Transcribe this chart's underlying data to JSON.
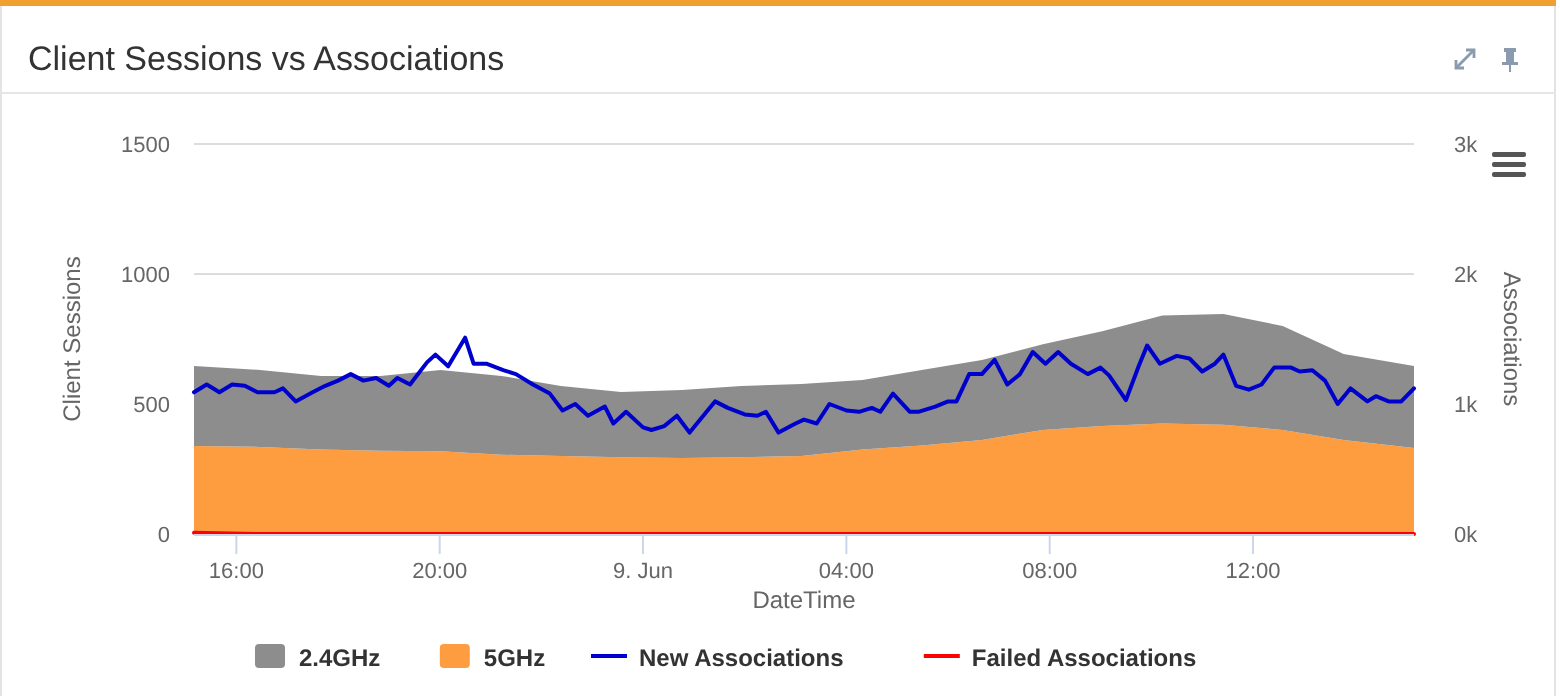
{
  "chart_data": {
    "type": "area",
    "title": "Client Sessions vs Associations",
    "xlabel": "DateTime",
    "ylabel": "Client Sessions",
    "y2label": "Associations",
    "stacked": true,
    "grid": "y",
    "legend": "bottom",
    "marker": "none",
    "x": [
      "--06-08T15:10",
      "--06-08T16:28",
      "--06-08T17:40",
      "--06-08T18:50",
      "--06-08T20:01",
      "--06-08T21:13",
      "--06-08T22:23",
      "--06-08T23:34",
      "--06-09T00:46",
      "--06-09T01:56",
      "--06-09T03:07",
      "--06-09T04:19",
      "--06-09T05:29",
      "--06-09T06:40",
      "--06-09T07:52",
      "--06-09T09:02",
      "--06-09T10:13",
      "--06-09T11:25",
      "--06-09T12:35",
      "--06-09T13:47",
      "--06-09T15:10"
    ],
    "xlim": [
      "--06-08T15:10",
      "--06-09T15:10"
    ],
    "xticks": [
      {
        "value": "--06-08T16:00",
        "label": "16:00"
      },
      {
        "value": "--06-08T20:00",
        "label": "20:00"
      },
      {
        "value": "--06-09T00:00",
        "label": "9. Jun"
      },
      {
        "value": "--06-09T04:00",
        "label": "04:00"
      },
      {
        "value": "--06-09T08:00",
        "label": "08:00"
      },
      {
        "value": "--06-09T12:00",
        "label": "12:00"
      }
    ],
    "ylim": [
      0,
      1500
    ],
    "yticks": [
      0,
      500,
      1000,
      1500
    ],
    "y2lim": [
      0,
      3000
    ],
    "y2ticks": [
      {
        "value": 0,
        "label": "0k"
      },
      {
        "value": 1000,
        "label": "1k"
      },
      {
        "value": 2000,
        "label": "2k"
      },
      {
        "value": 3000,
        "label": "3k"
      }
    ],
    "series": [
      {
        "name": "5GHz",
        "color": "#fd9d40",
        "values": [
          338,
          335,
          325,
          320,
          318,
          305,
          300,
          295,
          292,
          295,
          300,
          325,
          340,
          362,
          400,
          415,
          425,
          420,
          400,
          362,
          331
        ]
      },
      {
        "name": "2.4GHz",
        "color": "#8d8d8d",
        "values": [
          308,
          296,
          283,
          288,
          313,
          303,
          269,
          251,
          262,
          274,
          277,
          267,
          291,
          307,
          330,
          365,
          415,
          426,
          400,
          330,
          315
        ]
      },
      {
        "name": "New Associations",
        "type": "line",
        "axis": "y2",
        "color": "#0000cc",
        "line_style": "solid",
        "x": [
          "--06-08T15:10",
          "--06-08T15:25",
          "--06-08T15:40",
          "--06-08T15:55",
          "--06-08T16:10",
          "--06-08T16:25",
          "--06-08T16:45",
          "--06-08T16:55",
          "--06-08T17:10",
          "--06-08T17:30",
          "--06-08T17:45",
          "--06-08T18:00",
          "--06-08T18:15",
          "--06-08T18:30",
          "--06-08T18:45",
          "--06-08T19:00",
          "--06-08T19:10",
          "--06-08T19:25",
          "--06-08T19:45",
          "--06-08T19:55",
          "--06-08T20:10",
          "--06-08T20:30",
          "--06-08T20:40",
          "--06-08T20:55",
          "--06-08T21:15",
          "--06-08T21:30",
          "--06-08T21:50",
          "--06-08T22:10",
          "--06-08T22:25",
          "--06-08T22:40",
          "--06-08T22:55",
          "--06-08T23:15",
          "--06-08T23:25",
          "--06-08T23:40",
          "--06-09T00:00",
          "--06-09T00:10",
          "--06-09T00:25",
          "--06-09T00:40",
          "--06-09T00:55",
          "--06-09T01:15",
          "--06-09T01:25",
          "--06-09T01:40",
          "--06-09T02:00",
          "--06-09T02:15",
          "--06-09T02:25",
          "--06-09T02:40",
          "--06-09T03:00",
          "--06-09T03:10",
          "--06-09T03:25",
          "--06-09T03:40",
          "--06-09T04:00",
          "--06-09T04:15",
          "--06-09T04:30",
          "--06-09T04:40",
          "--06-09T04:55",
          "--06-09T05:15",
          "--06-09T05:25",
          "--06-09T05:45",
          "--06-09T06:00",
          "--06-09T06:10",
          "--06-09T06:25",
          "--06-09T06:40",
          "--06-09T06:55",
          "--06-09T07:10",
          "--06-09T07:25",
          "--06-09T07:40",
          "--06-09T07:55",
          "--06-09T08:10",
          "--06-09T08:25",
          "--06-09T08:45",
          "--06-09T09:00",
          "--06-09T09:10",
          "--06-09T09:30",
          "--06-09T09:45",
          "--06-09T09:55",
          "--06-09T10:10",
          "--06-09T10:30",
          "--06-09T10:45",
          "--06-09T11:00",
          "--06-09T11:15",
          "--06-09T11:25",
          "--06-09T11:40",
          "--06-09T11:55",
          "--06-09T12:10",
          "--06-09T12:25",
          "--06-09T12:45",
          "--06-09T12:55",
          "--06-09T13:10",
          "--06-09T13:25",
          "--06-09T13:40",
          "--06-09T13:55",
          "--06-09T14:15",
          "--06-09T14:25",
          "--06-09T14:40",
          "--06-09T14:55",
          "--06-09T15:10"
        ],
        "values": [
          1090,
          1150,
          1090,
          1150,
          1140,
          1090,
          1090,
          1120,
          1020,
          1090,
          1140,
          1180,
          1230,
          1180,
          1200,
          1140,
          1200,
          1150,
          1320,
          1380,
          1290,
          1510,
          1310,
          1310,
          1260,
          1230,
          1150,
          1080,
          950,
          1000,
          910,
          980,
          850,
          940,
          820,
          800,
          830,
          910,
          780,
          940,
          1020,
          970,
          920,
          910,
          940,
          780,
          850,
          880,
          850,
          1000,
          950,
          940,
          970,
          940,
          1080,
          940,
          940,
          980,
          1020,
          1020,
          1230,
          1230,
          1340,
          1150,
          1230,
          1400,
          1310,
          1400,
          1310,
          1230,
          1280,
          1220,
          1030,
          1290,
          1450,
          1310,
          1370,
          1350,
          1250,
          1310,
          1380,
          1140,
          1110,
          1150,
          1280,
          1280,
          1250,
          1260,
          1180,
          1000,
          1120,
          1020,
          1060,
          1020,
          1020,
          1120
        ]
      },
      {
        "name": "Failed Associations",
        "type": "line",
        "axis": "y2",
        "color": "#ff0000",
        "line_style": "solid",
        "values": [
          10,
          0,
          0,
          0,
          0,
          0,
          0,
          0,
          0,
          0,
          0,
          0,
          0,
          0,
          0,
          0,
          0,
          0,
          0,
          0,
          0
        ]
      }
    ]
  }
}
